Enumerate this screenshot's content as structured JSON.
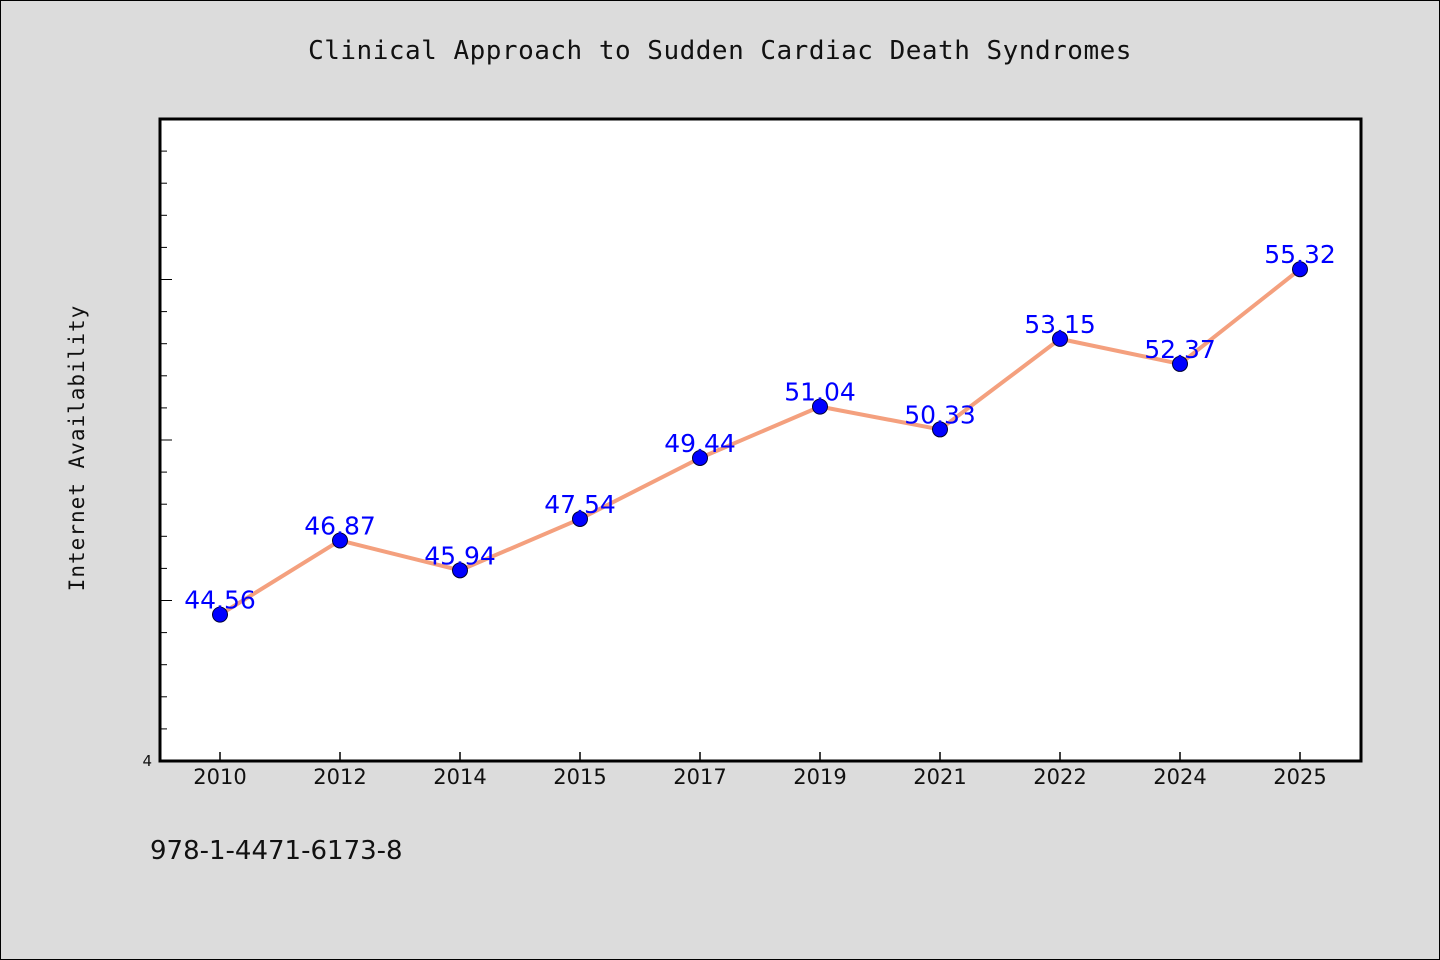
{
  "chart_data": {
    "type": "line",
    "title": "Clinical Approach to Sudden Cardiac Death Syndromes",
    "xlabel": "",
    "ylabel": "Internet Availability",
    "categories": [
      "2010",
      "2012",
      "2014",
      "2015",
      "2017",
      "2019",
      "2021",
      "2022",
      "2024",
      "2025"
    ],
    "series": [
      {
        "values": [
          44.56,
          46.87,
          45.94,
          47.54,
          49.44,
          51.04,
          50.33,
          53.15,
          52.37,
          55.32
        ],
        "data_labels": [
          "44.56",
          "46.87",
          "45.94",
          "47.54",
          "49.44",
          "51.04",
          "50.33",
          "53.15",
          "52.37",
          "55.32"
        ],
        "line_color": "#f4a07e",
        "marker_color": "#0000ff",
        "label_color": "#0000ff"
      }
    ],
    "ylim": [
      40,
      60
    ],
    "y_tick_labels": [
      "4"
    ],
    "grid": false,
    "legend": "none"
  },
  "footer_text": "978-1-4471-6173-8"
}
